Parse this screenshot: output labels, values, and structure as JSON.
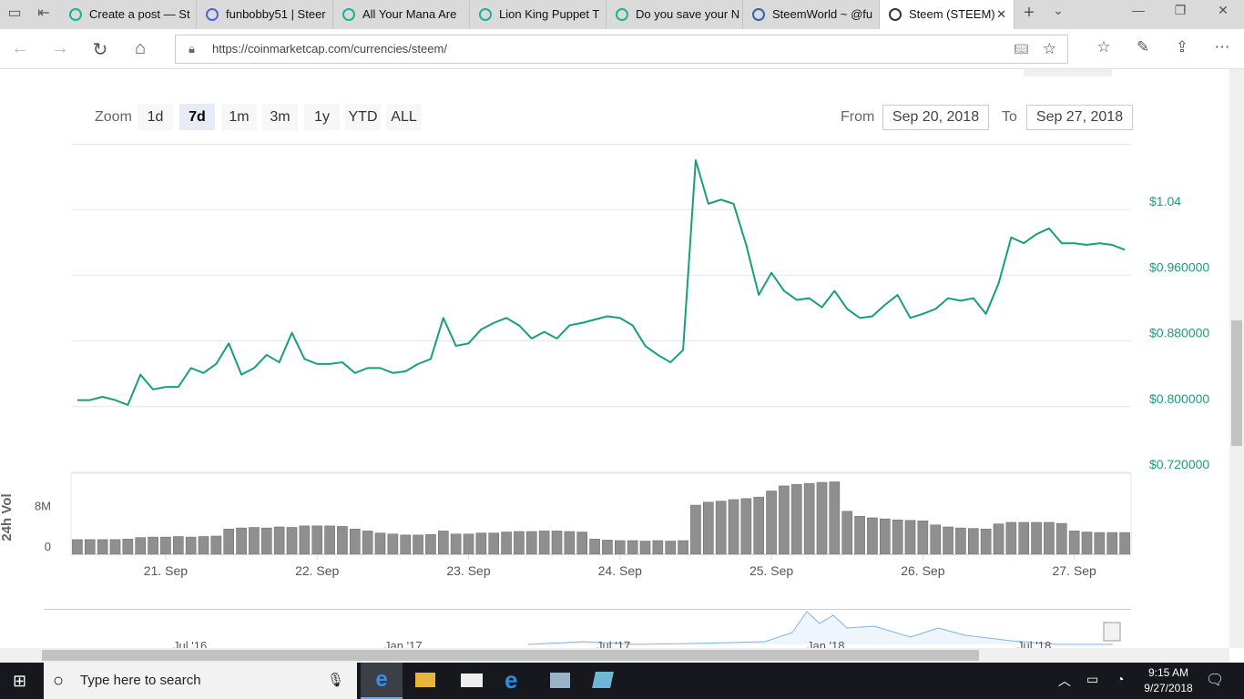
{
  "browser": {
    "tabs": [
      "Create a post — St",
      "funbobby51 | Steer",
      "All Your Mana Are",
      "Lion King Puppet T",
      "Do you save your N",
      "SteemWorld ~ @fu",
      "Steem (STEEM)"
    ],
    "url": "https://coinmarketcap.com/currencies/steem/"
  },
  "zoom": {
    "label": "Zoom",
    "buttons": [
      "1d",
      "7d",
      "1m",
      "3m",
      "1y",
      "YTD",
      "ALL"
    ],
    "selected": "7d"
  },
  "range": {
    "from_label": "From",
    "from": "Sep 20, 2018",
    "to_label": "To",
    "to": "Sep 27, 2018"
  },
  "chart_data": [
    {
      "type": "line",
      "color": "#17a078",
      "grid": true,
      "ylim": [
        0.72,
        1.12
      ],
      "yticks": [
        {
          "value": 0.72,
          "label": "$0.720000"
        },
        {
          "value": 0.8,
          "label": "$0.800000"
        },
        {
          "value": 0.88,
          "label": "$0.880000"
        },
        {
          "value": 0.96,
          "label": "$0.960000"
        },
        {
          "value": 1.04,
          "label": "$1.04"
        }
      ],
      "values": [
        0.808,
        0.808,
        0.812,
        0.808,
        0.802,
        0.839,
        0.821,
        0.824,
        0.824,
        0.847,
        0.841,
        0.852,
        0.877,
        0.839,
        0.847,
        0.863,
        0.854,
        0.89,
        0.858,
        0.852,
        0.852,
        0.854,
        0.841,
        0.847,
        0.847,
        0.841,
        0.843,
        0.852,
        0.858,
        0.908,
        0.874,
        0.877,
        0.894,
        0.902,
        0.908,
        0.899,
        0.883,
        0.891,
        0.883,
        0.899,
        0.902,
        0.906,
        0.91,
        0.908,
        0.899,
        0.874,
        0.863,
        0.854,
        0.869,
        1.1,
        1.047,
        1.052,
        1.047,
        0.997,
        0.936,
        0.963,
        0.941,
        0.93,
        0.932,
        0.921,
        0.941,
        0.919,
        0.908,
        0.91,
        0.924,
        0.936,
        0.908,
        0.913,
        0.919,
        0.932,
        0.929,
        0.932,
        0.913,
        0.95,
        1.006,
        0.999,
        1.01,
        1.017,
        0.999,
        0.999,
        0.997,
        0.999,
        0.997,
        0.991
      ]
    },
    {
      "type": "bar",
      "color": "#8f8f8f",
      "y_label": "24h Vol",
      "ylim": [
        0,
        16000000
      ],
      "yticks": [
        0,
        {
          "value": 8000000,
          "label": "8M"
        }
      ],
      "categories": [
        null,
        null,
        null,
        null,
        null,
        null,
        null,
        "21. Sep",
        null,
        null,
        null,
        null,
        null,
        null,
        null,
        null,
        null,
        null,
        null,
        "22. Sep",
        null,
        null,
        null,
        null,
        null,
        null,
        null,
        null,
        null,
        null,
        null,
        "23. Sep",
        null,
        null,
        null,
        null,
        null,
        null,
        null,
        null,
        null,
        null,
        null,
        "24. Sep",
        null,
        null,
        null,
        null,
        null,
        null,
        null,
        null,
        null,
        null,
        null,
        "25. Sep",
        null,
        null,
        null,
        null,
        null,
        null,
        null,
        null,
        null,
        null,
        null,
        "26. Sep",
        null,
        null,
        null,
        null,
        null,
        null,
        null,
        null,
        null,
        null,
        null,
        "27. Sep",
        null,
        null,
        null,
        null
      ],
      "values": [
        2900000,
        2900000,
        2900000,
        2900000,
        3000000,
        3300000,
        3400000,
        3400000,
        3500000,
        3400000,
        3500000,
        3600000,
        5000000,
        5200000,
        5300000,
        5200000,
        5400000,
        5300000,
        5600000,
        5600000,
        5600000,
        5500000,
        5000000,
        4600000,
        4200000,
        4000000,
        3800000,
        3800000,
        3900000,
        4600000,
        4000000,
        4000000,
        4200000,
        4200000,
        4400000,
        4500000,
        4500000,
        4600000,
        4600000,
        4500000,
        4400000,
        3000000,
        2800000,
        2700000,
        2700000,
        2600000,
        2700000,
        2600000,
        2700000,
        9700000,
        10300000,
        10500000,
        10800000,
        11000000,
        11300000,
        12500000,
        13500000,
        13800000,
        14000000,
        14200000,
        14300000,
        8500000,
        7500000,
        7200000,
        7000000,
        6800000,
        6700000,
        6600000,
        5800000,
        5400000,
        5200000,
        5100000,
        5000000,
        6000000,
        6300000,
        6300000,
        6300000,
        6300000,
        6100000,
        4600000,
        4400000,
        4300000,
        4300000,
        4300000
      ]
    }
  ],
  "navigator": {
    "labels": [
      "Jul '16",
      "Jan '17",
      "Jul '17",
      "Jan '18",
      "Jul '18"
    ]
  },
  "taskbar": {
    "search": "Type here to search",
    "time": "9:15 AM",
    "date": "9/27/2018"
  }
}
